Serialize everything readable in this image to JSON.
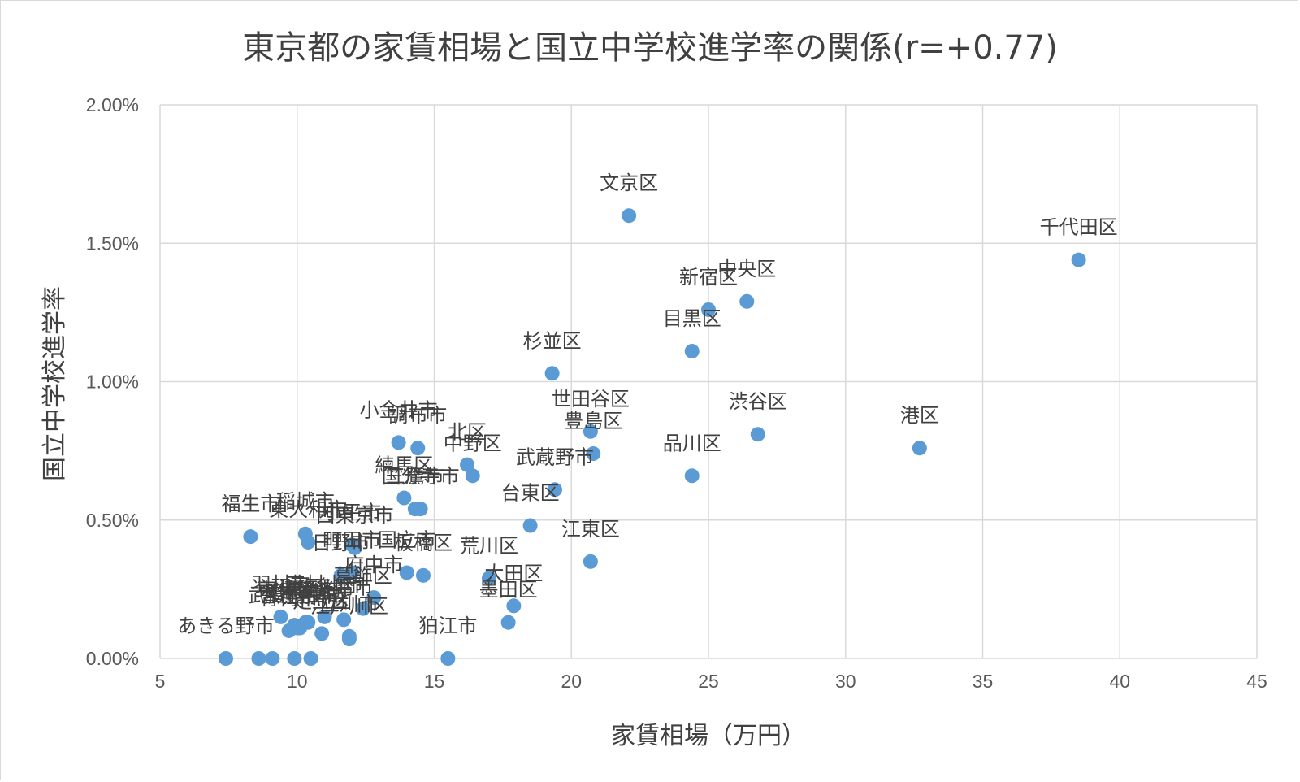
{
  "chart_data": {
    "type": "scatter",
    "title": "東京都の家賃相場と国立中学校進学率の関係(r=+0.77)",
    "xlabel": "家賃相場（万円）",
    "ylabel": "国立中学校進学率",
    "xlim": [
      5,
      45
    ],
    "ylim": [
      0,
      0.02
    ],
    "x_ticks": [
      "5",
      "10",
      "15",
      "20",
      "25",
      "30",
      "35",
      "40",
      "45"
    ],
    "y_ticks": [
      "0.00%",
      "0.50%",
      "1.00%",
      "1.50%",
      "2.00%"
    ],
    "grid": true,
    "marker_color": "#5b9bd5",
    "points": [
      {
        "label": "千代田区",
        "x": 38.5,
        "y": 0.0144
      },
      {
        "label": "文京区",
        "x": 22.1,
        "y": 0.016
      },
      {
        "label": "中央区",
        "x": 26.4,
        "y": 0.0129
      },
      {
        "label": "新宿区",
        "x": 25.0,
        "y": 0.0126
      },
      {
        "label": "目黒区",
        "x": 24.4,
        "y": 0.0111
      },
      {
        "label": "杉並区",
        "x": 19.3,
        "y": 0.0103
      },
      {
        "label": "渋谷区",
        "x": 26.8,
        "y": 0.0081
      },
      {
        "label": "港区",
        "x": 32.7,
        "y": 0.0076
      },
      {
        "label": "世田谷区",
        "x": 20.7,
        "y": 0.0082
      },
      {
        "label": "豊島区",
        "x": 20.8,
        "y": 0.0074
      },
      {
        "label": "品川区",
        "x": 24.4,
        "y": 0.0066
      },
      {
        "label": "武蔵野市",
        "x": 19.4,
        "y": 0.0061
      },
      {
        "label": "台東区",
        "x": 18.5,
        "y": 0.0048
      },
      {
        "label": "江東区",
        "x": 20.7,
        "y": 0.0035
      },
      {
        "label": "小金井市",
        "x": 13.7,
        "y": 0.0078
      },
      {
        "label": "調布市",
        "x": 14.4,
        "y": 0.0076
      },
      {
        "label": "北区",
        "x": 16.2,
        "y": 0.007
      },
      {
        "label": "中野区",
        "x": 16.4,
        "y": 0.0066
      },
      {
        "label": "三鷹市",
        "x": 14.3,
        "y": 0.0054
      },
      {
        "label": "練馬区",
        "x": 13.9,
        "y": 0.0058
      },
      {
        "label": "国分寺市",
        "x": 14.5,
        "y": 0.0054
      },
      {
        "label": "国立市",
        "x": 14.0,
        "y": 0.0031
      },
      {
        "label": "福生市",
        "x": 8.3,
        "y": 0.0044
      },
      {
        "label": "稲城市",
        "x": 10.3,
        "y": 0.0045
      },
      {
        "label": "小平市",
        "x": 12.0,
        "y": 0.0041
      },
      {
        "label": "東大和市",
        "x": 10.4,
        "y": 0.0042
      },
      {
        "label": "西東京市",
        "x": 12.1,
        "y": 0.004
      },
      {
        "label": "日野市",
        "x": 11.6,
        "y": 0.003
      },
      {
        "label": "町田市",
        "x": 12.0,
        "y": 0.0031
      },
      {
        "label": "板橋区",
        "x": 14.6,
        "y": 0.003
      },
      {
        "label": "荒川区",
        "x": 17.0,
        "y": 0.0029
      },
      {
        "label": "府中市",
        "x": 12.8,
        "y": 0.0022
      },
      {
        "label": "葛飾区",
        "x": 12.4,
        "y": 0.0018
      },
      {
        "label": "大田区",
        "x": 17.9,
        "y": 0.0019
      },
      {
        "label": "墨田区",
        "x": 17.7,
        "y": 0.0013
      },
      {
        "label": "狛江市",
        "x": 15.5,
        "y": 0.0
      },
      {
        "label": "東村山市",
        "x": 11.0,
        "y": 0.0015
      },
      {
        "label": "羽村市",
        "x": 9.4,
        "y": 0.0015
      },
      {
        "label": "昭島市",
        "x": 9.9,
        "y": 0.0012
      },
      {
        "label": "清瀬市",
        "x": 10.4,
        "y": 0.0013
      },
      {
        "label": "多摩市",
        "x": 11.7,
        "y": 0.0014
      },
      {
        "label": "八王子市",
        "x": 10.1,
        "y": 0.0011
      },
      {
        "label": "立川市",
        "x": 11.9,
        "y": 0.0008
      },
      {
        "label": "足立区",
        "x": 10.9,
        "y": 0.0009
      },
      {
        "label": "江戸川区",
        "x": 11.9,
        "y": 0.0007
      },
      {
        "label": "青梅市",
        "x": 9.7,
        "y": 0.001
      },
      {
        "label": "武蔵村山市",
        "x": 10.0,
        "y": 0.0011
      },
      {
        "label": "東久留米市",
        "x": 10.3,
        "y": 0.0013
      },
      {
        "label": "あきる野市",
        "x": 7.4,
        "y": 0.0
      },
      {
        "label": "",
        "x": 8.6,
        "y": 0.0
      },
      {
        "label": "",
        "x": 9.1,
        "y": 0.0
      },
      {
        "label": "",
        "x": 9.9,
        "y": 0.0
      },
      {
        "label": "",
        "x": 10.5,
        "y": 0.0
      }
    ]
  }
}
